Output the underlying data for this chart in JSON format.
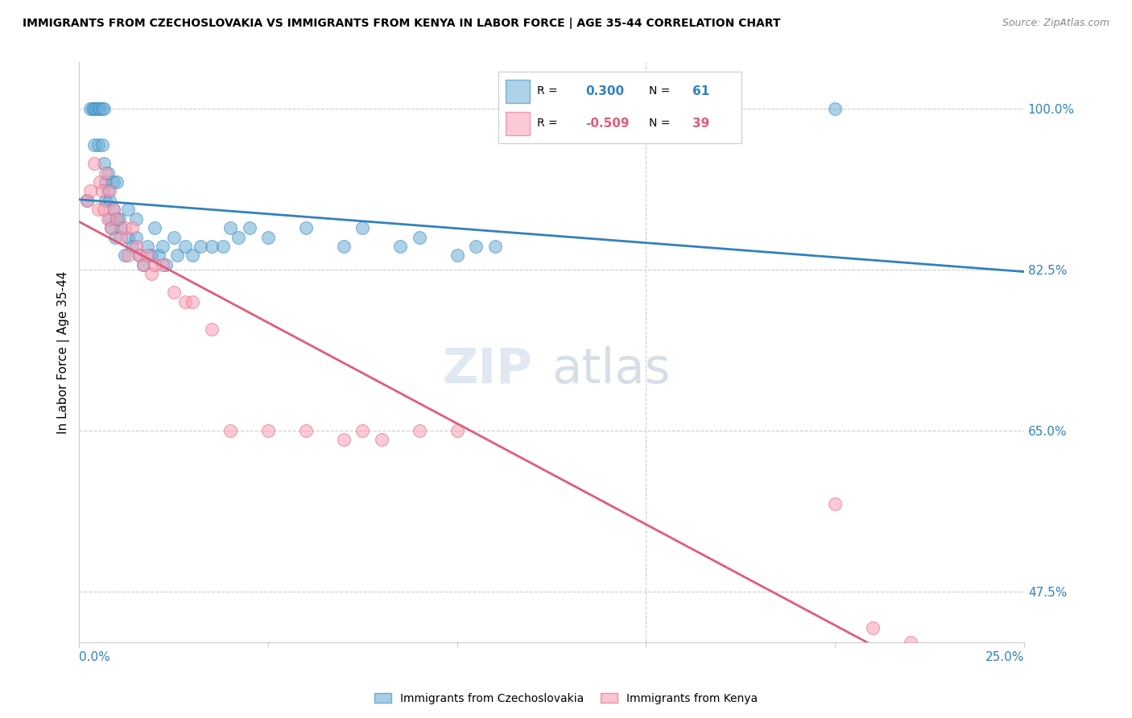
{
  "title": "IMMIGRANTS FROM CZECHOSLOVAKIA VS IMMIGRANTS FROM KENYA IN LABOR FORCE | AGE 35-44 CORRELATION CHART",
  "source": "Source: ZipAtlas.com",
  "ylabel": "In Labor Force | Age 35-44",
  "yticks": [
    47.5,
    65.0,
    82.5,
    100.0
  ],
  "xticks": [
    0.0,
    5.0,
    10.0,
    15.0,
    20.0,
    25.0
  ],
  "xlim": [
    0.0,
    25.0
  ],
  "ylim": [
    42.0,
    105.0
  ],
  "r_czech": 0.3,
  "n_czech": 61,
  "r_kenya": -0.509,
  "n_kenya": 39,
  "color_czech": "#6baed6",
  "color_kenya": "#fa9fb5",
  "color_czech_line": "#3182bd",
  "color_kenya_line": "#e05c7a",
  "color_axis_labels": "#3182bd",
  "watermark_zip": "ZIP",
  "watermark_atlas": "atlas",
  "czech_x": [
    0.2,
    0.3,
    0.35,
    0.4,
    0.4,
    0.45,
    0.5,
    0.5,
    0.55,
    0.6,
    0.6,
    0.65,
    0.65,
    0.7,
    0.7,
    0.75,
    0.75,
    0.8,
    0.8,
    0.85,
    0.9,
    0.9,
    0.95,
    1.0,
    1.0,
    1.05,
    1.1,
    1.2,
    1.3,
    1.3,
    1.4,
    1.5,
    1.5,
    1.6,
    1.7,
    1.8,
    1.9,
    2.0,
    2.1,
    2.2,
    2.3,
    2.5,
    2.6,
    2.8,
    3.0,
    3.2,
    3.5,
    3.8,
    4.0,
    4.2,
    4.5,
    5.0,
    6.0,
    7.0,
    7.5,
    8.5,
    9.0,
    10.0,
    10.5,
    11.0,
    20.0
  ],
  "czech_y": [
    90.0,
    100.0,
    100.0,
    100.0,
    96.0,
    100.0,
    100.0,
    96.0,
    100.0,
    100.0,
    96.0,
    94.0,
    100.0,
    92.0,
    90.0,
    91.0,
    93.0,
    90.0,
    88.0,
    87.0,
    92.0,
    89.0,
    86.0,
    88.0,
    92.0,
    88.0,
    87.0,
    84.0,
    86.0,
    89.0,
    85.0,
    86.0,
    88.0,
    84.0,
    83.0,
    85.0,
    84.0,
    87.0,
    84.0,
    85.0,
    83.0,
    86.0,
    84.0,
    85.0,
    84.0,
    85.0,
    85.0,
    85.0,
    87.0,
    86.0,
    87.0,
    86.0,
    87.0,
    85.0,
    87.0,
    85.0,
    86.0,
    84.0,
    85.0,
    85.0,
    100.0
  ],
  "kenya_x": [
    0.2,
    0.3,
    0.4,
    0.5,
    0.55,
    0.6,
    0.65,
    0.7,
    0.75,
    0.8,
    0.85,
    0.9,
    1.0,
    1.1,
    1.2,
    1.3,
    1.4,
    1.5,
    1.6,
    1.7,
    1.8,
    1.9,
    2.0,
    2.2,
    2.5,
    2.8,
    3.0,
    3.5,
    4.0,
    5.0,
    6.0,
    7.0,
    7.5,
    8.0,
    9.0,
    10.0,
    20.0,
    21.0,
    22.0
  ],
  "kenya_y": [
    90.0,
    91.0,
    94.0,
    89.0,
    92.0,
    91.0,
    89.0,
    93.0,
    88.0,
    91.0,
    87.0,
    89.0,
    88.0,
    86.0,
    87.0,
    84.0,
    87.0,
    85.0,
    84.0,
    83.0,
    84.0,
    82.0,
    83.0,
    83.0,
    80.0,
    79.0,
    79.0,
    76.0,
    65.0,
    65.0,
    65.0,
    64.0,
    65.0,
    64.0,
    65.0,
    65.0,
    57.0,
    43.5,
    42.0
  ]
}
